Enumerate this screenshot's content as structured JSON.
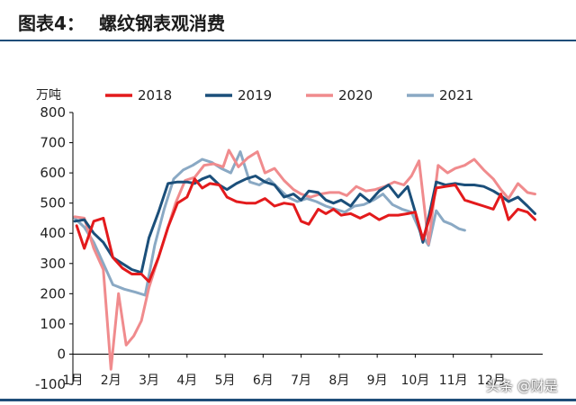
{
  "header": {
    "figure_label": "图表4：",
    "title": "螺纹钢表观消费"
  },
  "watermark": "头条 @财是",
  "colors": {
    "2018": "#e31a1c",
    "2019": "#1b4f7a",
    "2020": "#f08b8d",
    "2021": "#8aa9c4",
    "rule": "#1f4e79"
  },
  "chart_data": {
    "type": "line",
    "ylabel": "万吨",
    "ylim": [
      -100,
      800
    ],
    "yticks": [
      -100,
      0,
      100,
      200,
      300,
      400,
      500,
      600,
      700,
      800
    ],
    "xlim": [
      1,
      13.35
    ],
    "xticks": [
      {
        "label": "1月",
        "x": 1
      },
      {
        "label": "2月",
        "x": 2
      },
      {
        "label": "3月",
        "x": 3
      },
      {
        "label": "4月",
        "x": 4
      },
      {
        "label": "5月",
        "x": 5
      },
      {
        "label": "6月",
        "x": 6
      },
      {
        "label": "7月",
        "x": 7
      },
      {
        "label": "8月",
        "x": 8
      },
      {
        "label": "9月",
        "x": 9
      },
      {
        "label": "10月",
        "x": 10
      },
      {
        "label": "11月",
        "x": 11
      },
      {
        "label": "12月",
        "x": 12
      }
    ],
    "legend_position": "top",
    "series": [
      {
        "name": "2018",
        "points": [
          [
            1.1,
            425
          ],
          [
            1.3,
            350
          ],
          [
            1.55,
            440
          ],
          [
            1.8,
            450
          ],
          [
            2.05,
            320
          ],
          [
            2.3,
            285
          ],
          [
            2.55,
            265
          ],
          [
            2.8,
            265
          ],
          [
            3.0,
            240
          ],
          [
            3.25,
            320
          ],
          [
            3.5,
            420
          ],
          [
            3.75,
            500
          ],
          [
            4.0,
            520
          ],
          [
            4.2,
            580
          ],
          [
            4.4,
            550
          ],
          [
            4.6,
            565
          ],
          [
            4.85,
            560
          ],
          [
            5.05,
            520
          ],
          [
            5.3,
            505
          ],
          [
            5.55,
            500
          ],
          [
            5.8,
            500
          ],
          [
            6.05,
            515
          ],
          [
            6.3,
            490
          ],
          [
            6.55,
            500
          ],
          [
            6.8,
            495
          ],
          [
            7.0,
            440
          ],
          [
            7.2,
            430
          ],
          [
            7.45,
            480
          ],
          [
            7.65,
            465
          ],
          [
            7.85,
            480
          ],
          [
            8.05,
            460
          ],
          [
            8.3,
            465
          ],
          [
            8.55,
            450
          ],
          [
            8.8,
            465
          ],
          [
            9.05,
            445
          ],
          [
            9.3,
            460
          ],
          [
            9.55,
            460
          ],
          [
            9.8,
            465
          ],
          [
            10.0,
            470
          ],
          [
            10.2,
            380
          ],
          [
            10.4,
            460
          ],
          [
            10.55,
            550
          ],
          [
            10.8,
            555
          ],
          [
            11.05,
            560
          ],
          [
            11.3,
            510
          ],
          [
            11.55,
            500
          ],
          [
            11.8,
            490
          ],
          [
            12.05,
            480
          ],
          [
            12.25,
            530
          ],
          [
            12.45,
            445
          ],
          [
            12.7,
            480
          ],
          [
            12.95,
            470
          ],
          [
            13.15,
            445
          ]
        ]
      },
      {
        "name": "2019",
        "points": [
          [
            1.05,
            440
          ],
          [
            1.3,
            445
          ],
          [
            1.55,
            400
          ],
          [
            1.8,
            370
          ],
          [
            2.05,
            320
          ],
          [
            2.3,
            300
          ],
          [
            2.55,
            280
          ],
          [
            2.8,
            270
          ],
          [
            3.0,
            385
          ],
          [
            3.25,
            470
          ],
          [
            3.5,
            565
          ],
          [
            3.75,
            570
          ],
          [
            4.0,
            570
          ],
          [
            4.2,
            565
          ],
          [
            4.4,
            580
          ],
          [
            4.6,
            590
          ],
          [
            4.85,
            560
          ],
          [
            5.05,
            545
          ],
          [
            5.3,
            565
          ],
          [
            5.55,
            580
          ],
          [
            5.8,
            590
          ],
          [
            6.05,
            570
          ],
          [
            6.3,
            560
          ],
          [
            6.55,
            520
          ],
          [
            6.8,
            530
          ],
          [
            7.0,
            510
          ],
          [
            7.2,
            540
          ],
          [
            7.45,
            535
          ],
          [
            7.65,
            510
          ],
          [
            7.85,
            500
          ],
          [
            8.05,
            510
          ],
          [
            8.3,
            490
          ],
          [
            8.55,
            530
          ],
          [
            8.8,
            505
          ],
          [
            9.05,
            540
          ],
          [
            9.3,
            560
          ],
          [
            9.55,
            520
          ],
          [
            9.8,
            555
          ],
          [
            10.0,
            470
          ],
          [
            10.2,
            370
          ],
          [
            10.4,
            480
          ],
          [
            10.55,
            570
          ],
          [
            10.8,
            560
          ],
          [
            11.05,
            565
          ],
          [
            11.3,
            560
          ],
          [
            11.55,
            560
          ],
          [
            11.8,
            555
          ],
          [
            12.05,
            540
          ],
          [
            12.25,
            525
          ],
          [
            12.45,
            505
          ],
          [
            12.7,
            520
          ],
          [
            12.95,
            490
          ],
          [
            13.15,
            465
          ]
        ]
      },
      {
        "name": "2020",
        "points": [
          [
            1.05,
            455
          ],
          [
            1.3,
            450
          ],
          [
            1.55,
            350
          ],
          [
            1.8,
            280
          ],
          [
            2.0,
            -50
          ],
          [
            2.2,
            200
          ],
          [
            2.4,
            30
          ],
          [
            2.6,
            60
          ],
          [
            2.8,
            110
          ],
          [
            3.0,
            220
          ],
          [
            3.2,
            300
          ],
          [
            3.45,
            400
          ],
          [
            3.7,
            500
          ],
          [
            3.95,
            575
          ],
          [
            4.2,
            585
          ],
          [
            4.45,
            625
          ],
          [
            4.7,
            630
          ],
          [
            4.95,
            620
          ],
          [
            5.1,
            675
          ],
          [
            5.35,
            620
          ],
          [
            5.6,
            650
          ],
          [
            5.85,
            670
          ],
          [
            6.05,
            600
          ],
          [
            6.3,
            615
          ],
          [
            6.55,
            575
          ],
          [
            6.8,
            545
          ],
          [
            7.0,
            530
          ],
          [
            7.25,
            520
          ],
          [
            7.5,
            530
          ],
          [
            7.75,
            535
          ],
          [
            8.0,
            535
          ],
          [
            8.2,
            525
          ],
          [
            8.45,
            555
          ],
          [
            8.7,
            540
          ],
          [
            8.95,
            545
          ],
          [
            9.2,
            555
          ],
          [
            9.45,
            570
          ],
          [
            9.7,
            560
          ],
          [
            9.9,
            590
          ],
          [
            10.1,
            640
          ],
          [
            10.35,
            365
          ],
          [
            10.6,
            625
          ],
          [
            10.85,
            600
          ],
          [
            11.05,
            615
          ],
          [
            11.3,
            625
          ],
          [
            11.55,
            645
          ],
          [
            11.8,
            610
          ],
          [
            12.05,
            580
          ],
          [
            12.25,
            545
          ],
          [
            12.45,
            515
          ],
          [
            12.7,
            565
          ],
          [
            12.95,
            535
          ],
          [
            13.15,
            530
          ]
        ]
      },
      {
        "name": "2021",
        "points": [
          [
            1.05,
            450
          ],
          [
            1.3,
            420
          ],
          [
            1.55,
            370
          ],
          [
            1.8,
            300
          ],
          [
            2.05,
            230
          ],
          [
            2.35,
            215
          ],
          [
            2.65,
            205
          ],
          [
            2.9,
            195
          ],
          [
            3.15,
            360
          ],
          [
            3.4,
            480
          ],
          [
            3.65,
            580
          ],
          [
            3.9,
            610
          ],
          [
            4.15,
            625
          ],
          [
            4.4,
            645
          ],
          [
            4.65,
            635
          ],
          [
            4.9,
            615
          ],
          [
            5.15,
            600
          ],
          [
            5.4,
            670
          ],
          [
            5.65,
            570
          ],
          [
            5.9,
            560
          ],
          [
            6.15,
            580
          ],
          [
            6.4,
            550
          ],
          [
            6.65,
            520
          ],
          [
            6.9,
            505
          ],
          [
            7.15,
            515
          ],
          [
            7.4,
            505
          ],
          [
            7.65,
            490
          ],
          [
            7.9,
            480
          ],
          [
            8.15,
            470
          ],
          [
            8.4,
            490
          ],
          [
            8.65,
            495
          ],
          [
            8.9,
            510
          ],
          [
            9.15,
            530
          ],
          [
            9.4,
            495
          ],
          [
            9.65,
            480
          ],
          [
            9.9,
            470
          ],
          [
            10.15,
            400
          ],
          [
            10.35,
            360
          ],
          [
            10.55,
            475
          ],
          [
            10.75,
            440
          ],
          [
            10.95,
            430
          ],
          [
            11.15,
            415
          ],
          [
            11.3,
            410
          ]
        ]
      }
    ]
  }
}
